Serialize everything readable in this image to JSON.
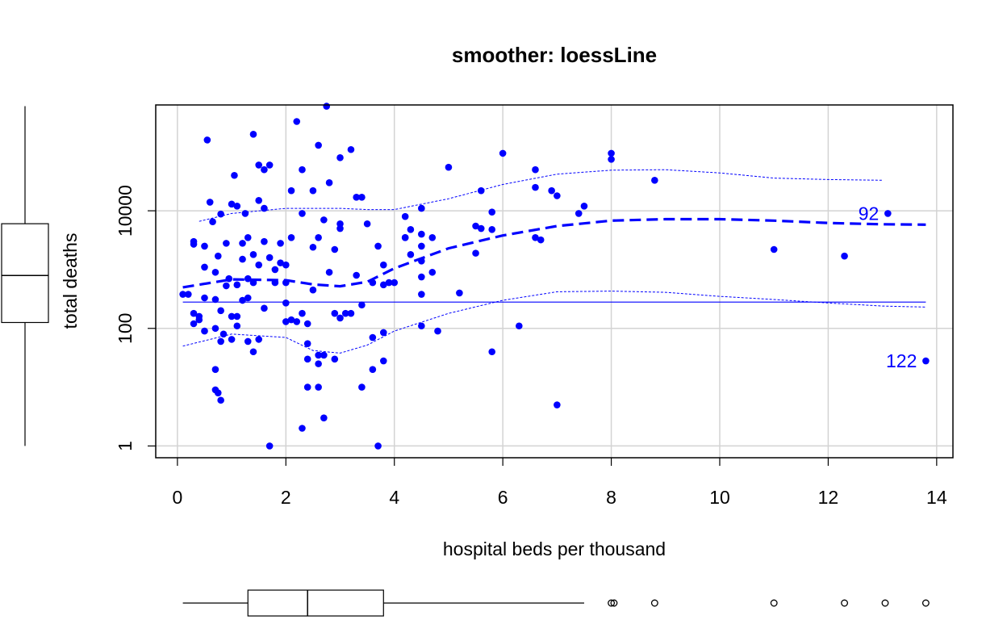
{
  "chart_data": {
    "type": "scatter",
    "title": "smoother: loessLine",
    "xlabel": "hospital beds per thousand",
    "ylabel": "total deaths",
    "x_scale": "linear",
    "y_scale": "log",
    "xlim": [
      -0.4,
      14.3
    ],
    "ylim_log10": [
      -0.2,
      5.8
    ],
    "x_ticks": [
      0,
      2,
      4,
      6,
      8,
      10,
      12,
      14
    ],
    "y_ticks": [
      1,
      100,
      10000
    ],
    "grid": true,
    "point_color": "#0000ff",
    "points": [
      {
        "x": 0.1,
        "y": 380
      },
      {
        "x": 0.2,
        "y": 380
      },
      {
        "x": 0.3,
        "y": 3000
      },
      {
        "x": 0.3,
        "y": 2700
      },
      {
        "x": 0.3,
        "y": 180
      },
      {
        "x": 0.3,
        "y": 120
      },
      {
        "x": 0.4,
        "y": 160
      },
      {
        "x": 0.4,
        "y": 140
      },
      {
        "x": 0.5,
        "y": 90
      },
      {
        "x": 0.5,
        "y": 1100
      },
      {
        "x": 0.5,
        "y": 2500
      },
      {
        "x": 0.5,
        "y": 330
      },
      {
        "x": 0.55,
        "y": 160000
      },
      {
        "x": 0.6,
        "y": 14000
      },
      {
        "x": 0.65,
        "y": 6500
      },
      {
        "x": 0.7,
        "y": 900
      },
      {
        "x": 0.7,
        "y": 20
      },
      {
        "x": 0.7,
        "y": 9
      },
      {
        "x": 0.7,
        "y": 100
      },
      {
        "x": 0.7,
        "y": 310
      },
      {
        "x": 0.75,
        "y": 1700
      },
      {
        "x": 0.75,
        "y": 8
      },
      {
        "x": 0.8,
        "y": 8800
      },
      {
        "x": 0.8,
        "y": 6
      },
      {
        "x": 0.8,
        "y": 60
      },
      {
        "x": 0.8,
        "y": 200
      },
      {
        "x": 0.85,
        "y": 80
      },
      {
        "x": 0.9,
        "y": 2800
      },
      {
        "x": 0.9,
        "y": 530
      },
      {
        "x": 0.95,
        "y": 700
      },
      {
        "x": 1.0,
        "y": 13000
      },
      {
        "x": 1.0,
        "y": 65
      },
      {
        "x": 1.0,
        "y": 160
      },
      {
        "x": 1.05,
        "y": 40000
      },
      {
        "x": 1.1,
        "y": 12000
      },
      {
        "x": 1.1,
        "y": 550
      },
      {
        "x": 1.1,
        "y": 160
      },
      {
        "x": 1.1,
        "y": 110
      },
      {
        "x": 1.2,
        "y": 2800
      },
      {
        "x": 1.2,
        "y": 1500
      },
      {
        "x": 1.2,
        "y": 300
      },
      {
        "x": 1.25,
        "y": 9000
      },
      {
        "x": 1.3,
        "y": 3500
      },
      {
        "x": 1.3,
        "y": 700
      },
      {
        "x": 1.3,
        "y": 60
      },
      {
        "x": 1.3,
        "y": 330
      },
      {
        "x": 1.4,
        "y": 200000
      },
      {
        "x": 1.4,
        "y": 1800
      },
      {
        "x": 1.4,
        "y": 600
      },
      {
        "x": 1.4,
        "y": 40
      },
      {
        "x": 1.5,
        "y": 60000
      },
      {
        "x": 1.5,
        "y": 1200
      },
      {
        "x": 1.5,
        "y": 15000
      },
      {
        "x": 1.5,
        "y": 65
      },
      {
        "x": 1.6,
        "y": 50000
      },
      {
        "x": 1.6,
        "y": 11000
      },
      {
        "x": 1.6,
        "y": 220
      },
      {
        "x": 1.6,
        "y": 3000
      },
      {
        "x": 1.7,
        "y": 60000
      },
      {
        "x": 1.7,
        "y": 1
      },
      {
        "x": 1.7,
        "y": 1600
      },
      {
        "x": 1.8,
        "y": 1000
      },
      {
        "x": 1.8,
        "y": 600
      },
      {
        "x": 1.9,
        "y": 1300
      },
      {
        "x": 1.9,
        "y": 2800
      },
      {
        "x": 2.0,
        "y": 1200
      },
      {
        "x": 2.0,
        "y": 130
      },
      {
        "x": 2.0,
        "y": 270
      },
      {
        "x": 2.0,
        "y": 600
      },
      {
        "x": 2.1,
        "y": 140
      },
      {
        "x": 2.1,
        "y": 22000
      },
      {
        "x": 2.1,
        "y": 3500
      },
      {
        "x": 2.2,
        "y": 330000
      },
      {
        "x": 2.2,
        "y": 130
      },
      {
        "x": 2.3,
        "y": 50000
      },
      {
        "x": 2.3,
        "y": 9000
      },
      {
        "x": 2.3,
        "y": 2
      },
      {
        "x": 2.3,
        "y": 180
      },
      {
        "x": 2.4,
        "y": 55
      },
      {
        "x": 2.4,
        "y": 120
      },
      {
        "x": 2.4,
        "y": 30
      },
      {
        "x": 2.4,
        "y": 10
      },
      {
        "x": 2.5,
        "y": 22000
      },
      {
        "x": 2.5,
        "y": 450
      },
      {
        "x": 2.5,
        "y": 2400
      },
      {
        "x": 2.6,
        "y": 130000
      },
      {
        "x": 2.6,
        "y": 3500
      },
      {
        "x": 2.6,
        "y": 35
      },
      {
        "x": 2.6,
        "y": 25
      },
      {
        "x": 2.6,
        "y": 10
      },
      {
        "x": 2.7,
        "y": 7000
      },
      {
        "x": 2.7,
        "y": 35
      },
      {
        "x": 2.7,
        "y": 3
      },
      {
        "x": 2.75,
        "y": 600000
      },
      {
        "x": 2.8,
        "y": 30000
      },
      {
        "x": 2.8,
        "y": 900
      },
      {
        "x": 2.9,
        "y": 2200
      },
      {
        "x": 2.9,
        "y": 180
      },
      {
        "x": 2.9,
        "y": 30
      },
      {
        "x": 3.0,
        "y": 80000
      },
      {
        "x": 3.0,
        "y": 6000
      },
      {
        "x": 3.0,
        "y": 5000
      },
      {
        "x": 3.0,
        "y": 150
      },
      {
        "x": 3.1,
        "y": 180
      },
      {
        "x": 3.2,
        "y": 110000
      },
      {
        "x": 3.2,
        "y": 180
      },
      {
        "x": 3.3,
        "y": 800
      },
      {
        "x": 3.3,
        "y": 17000
      },
      {
        "x": 3.4,
        "y": 17000
      },
      {
        "x": 3.4,
        "y": 250
      },
      {
        "x": 3.4,
        "y": 10
      },
      {
        "x": 3.5,
        "y": 6000
      },
      {
        "x": 3.6,
        "y": 600
      },
      {
        "x": 3.6,
        "y": 20
      },
      {
        "x": 3.6,
        "y": 70
      },
      {
        "x": 3.7,
        "y": 1
      },
      {
        "x": 3.7,
        "y": 2500
      },
      {
        "x": 3.8,
        "y": 550
      },
      {
        "x": 3.8,
        "y": 85
      },
      {
        "x": 3.8,
        "y": 28
      },
      {
        "x": 3.8,
        "y": 1200
      },
      {
        "x": 3.9,
        "y": 600
      },
      {
        "x": 4.0,
        "y": 600
      },
      {
        "x": 4.2,
        "y": 8000
      },
      {
        "x": 4.2,
        "y": 3500
      },
      {
        "x": 4.2,
        "y": 3500
      },
      {
        "x": 4.3,
        "y": 4800
      },
      {
        "x": 4.3,
        "y": 1800
      },
      {
        "x": 4.5,
        "y": 11000
      },
      {
        "x": 4.5,
        "y": 4000
      },
      {
        "x": 4.5,
        "y": 2500
      },
      {
        "x": 4.5,
        "y": 1400
      },
      {
        "x": 4.5,
        "y": 750
      },
      {
        "x": 4.5,
        "y": 380
      },
      {
        "x": 4.5,
        "y": 110
      },
      {
        "x": 4.7,
        "y": 3500
      },
      {
        "x": 4.7,
        "y": 900
      },
      {
        "x": 4.8,
        "y": 90
      },
      {
        "x": 5.0,
        "y": 55000
      },
      {
        "x": 5.2,
        "y": 400
      },
      {
        "x": 5.5,
        "y": 5500
      },
      {
        "x": 5.5,
        "y": 1900
      },
      {
        "x": 5.6,
        "y": 5000
      },
      {
        "x": 5.6,
        "y": 22000
      },
      {
        "x": 5.8,
        "y": 9500
      },
      {
        "x": 5.8,
        "y": 4800
      },
      {
        "x": 5.8,
        "y": 40
      },
      {
        "x": 6.0,
        "y": 95000
      },
      {
        "x": 6.3,
        "y": 110
      },
      {
        "x": 6.6,
        "y": 3500
      },
      {
        "x": 6.6,
        "y": 50000
      },
      {
        "x": 6.6,
        "y": 25000
      },
      {
        "x": 6.7,
        "y": 3200
      },
      {
        "x": 6.9,
        "y": 22000
      },
      {
        "x": 7.0,
        "y": 18000
      },
      {
        "x": 7.0,
        "y": 5
      },
      {
        "x": 7.4,
        "y": 9000
      },
      {
        "x": 7.5,
        "y": 12000
      },
      {
        "x": 8.0,
        "y": 75000
      },
      {
        "x": 8.0,
        "y": 95000
      },
      {
        "x": 8.8,
        "y": 33000
      },
      {
        "x": 11.0,
        "y": 2200
      },
      {
        "x": 12.3,
        "y": 1700
      },
      {
        "x": 13.1,
        "y": 9000
      },
      {
        "x": 13.8,
        "y": 28
      }
    ],
    "point_labels": [
      {
        "text": "92",
        "x": 13.1,
        "y": 9000
      },
      {
        "text": "122",
        "x": 13.8,
        "y": 28
      }
    ],
    "linear_fit": {
      "y": 280
    },
    "loess_fit": [
      [
        0.1,
        500
      ],
      [
        1.0,
        680
      ],
      [
        2.0,
        660
      ],
      [
        2.5,
        560
      ],
      [
        3.0,
        520
      ],
      [
        3.5,
        620
      ],
      [
        4.0,
        1050
      ],
      [
        5.0,
        2300
      ],
      [
        6.0,
        3800
      ],
      [
        7.0,
        5500
      ],
      [
        8.0,
        6800
      ],
      [
        9.0,
        7200
      ],
      [
        10.0,
        7200
      ],
      [
        11.0,
        6800
      ],
      [
        12.0,
        6200
      ],
      [
        13.0,
        5900
      ],
      [
        13.8,
        5800
      ]
    ],
    "spread_upper": [
      [
        0.4,
        6600
      ],
      [
        1.0,
        9000
      ],
      [
        2.0,
        11000
      ],
      [
        3.0,
        11000
      ],
      [
        3.5,
        10500
      ],
      [
        4.0,
        10500
      ],
      [
        5.0,
        16000
      ],
      [
        6.0,
        28000
      ],
      [
        7.0,
        42000
      ],
      [
        8.0,
        49000
      ],
      [
        9.0,
        50000
      ],
      [
        10.0,
        44000
      ],
      [
        11.0,
        36000
      ],
      [
        12.0,
        34000
      ],
      [
        13.0,
        33000
      ]
    ],
    "spread_lower": [
      [
        0.1,
        50
      ],
      [
        1.0,
        80
      ],
      [
        2.0,
        70
      ],
      [
        2.5,
        42
      ],
      [
        3.0,
        38
      ],
      [
        3.5,
        52
      ],
      [
        4.0,
        90
      ],
      [
        5.0,
        180
      ],
      [
        6.0,
        300
      ],
      [
        7.0,
        420
      ],
      [
        8.0,
        430
      ],
      [
        9.0,
        410
      ],
      [
        10.0,
        350
      ],
      [
        11.0,
        310
      ],
      [
        12.0,
        270
      ],
      [
        13.0,
        240
      ],
      [
        13.8,
        230
      ]
    ],
    "x_boxplot": {
      "lower_whisker": 0.1,
      "q1": 1.3,
      "median": 2.4,
      "q3": 3.8,
      "upper_whisker": 7.5,
      "outliers": [
        8.0,
        8.05,
        8.8,
        11.0,
        12.3,
        13.05,
        13.8
      ]
    },
    "y_boxplot_log10": {
      "lower_whisker": 0.0,
      "q1": 2.1,
      "median": 2.9,
      "q3": 3.78,
      "upper_whisker": 5.78
    }
  }
}
